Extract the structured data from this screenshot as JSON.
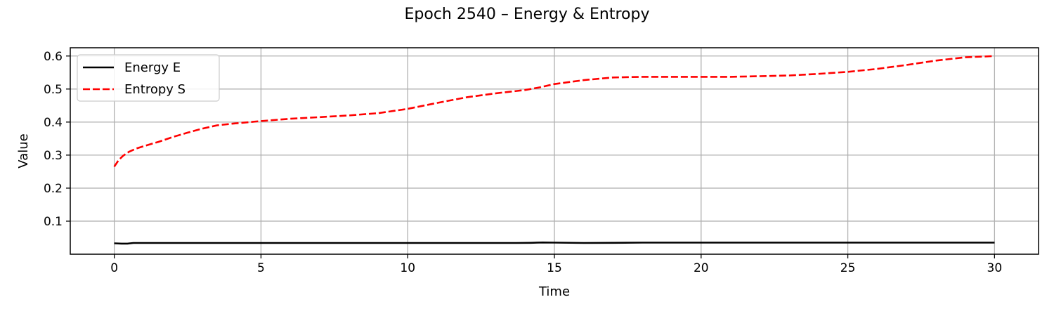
{
  "chart_data": {
    "type": "line",
    "title": "Epoch 2540 – Energy & Entropy",
    "xlabel": "Time",
    "ylabel": "Value",
    "xlim": [
      -1.5,
      31.5
    ],
    "ylim": [
      0.0,
      0.625
    ],
    "xticks": [
      0,
      5,
      10,
      15,
      20,
      25,
      30
    ],
    "yticks": [
      0.1,
      0.2,
      0.3,
      0.4,
      0.5,
      0.6
    ],
    "grid": true,
    "legend_position": "top-left",
    "series": [
      {
        "name": "Energy E",
        "color": "#000000",
        "style": "solid",
        "x": [
          0,
          0.25,
          0.45,
          0.65,
          1,
          2,
          3,
          4,
          5,
          6,
          7,
          8,
          9,
          10,
          11,
          12,
          13,
          13.7,
          14.2,
          14.6,
          15,
          16,
          17,
          18,
          19,
          20,
          21,
          22,
          23,
          24,
          25,
          26,
          27,
          28,
          29,
          30
        ],
        "y": [
          0.033,
          0.032,
          0.032,
          0.034,
          0.034,
          0.034,
          0.034,
          0.034,
          0.034,
          0.034,
          0.034,
          0.034,
          0.034,
          0.034,
          0.034,
          0.034,
          0.034,
          0.034,
          0.0345,
          0.0355,
          0.035,
          0.034,
          0.0345,
          0.035,
          0.035,
          0.035,
          0.035,
          0.035,
          0.035,
          0.035,
          0.035,
          0.035,
          0.035,
          0.035,
          0.035,
          0.035
        ]
      },
      {
        "name": "Entropy S",
        "color": "#ff0000",
        "style": "dashed",
        "x": [
          0,
          0.15,
          0.3,
          0.5,
          0.75,
          1,
          1.5,
          2,
          2.5,
          3,
          3.5,
          4,
          5,
          6,
          7,
          8,
          9,
          10,
          11,
          12,
          13,
          14,
          14.5,
          15,
          16,
          17,
          18,
          19,
          20,
          21,
          22,
          23,
          24,
          25,
          26,
          27,
          28,
          29,
          30
        ],
        "y": [
          0.265,
          0.285,
          0.298,
          0.31,
          0.32,
          0.327,
          0.34,
          0.355,
          0.368,
          0.38,
          0.39,
          0.395,
          0.403,
          0.41,
          0.415,
          0.42,
          0.427,
          0.44,
          0.458,
          0.475,
          0.487,
          0.497,
          0.505,
          0.515,
          0.527,
          0.535,
          0.537,
          0.537,
          0.537,
          0.537,
          0.539,
          0.541,
          0.546,
          0.552,
          0.561,
          0.573,
          0.586,
          0.596,
          0.6
        ]
      }
    ]
  }
}
